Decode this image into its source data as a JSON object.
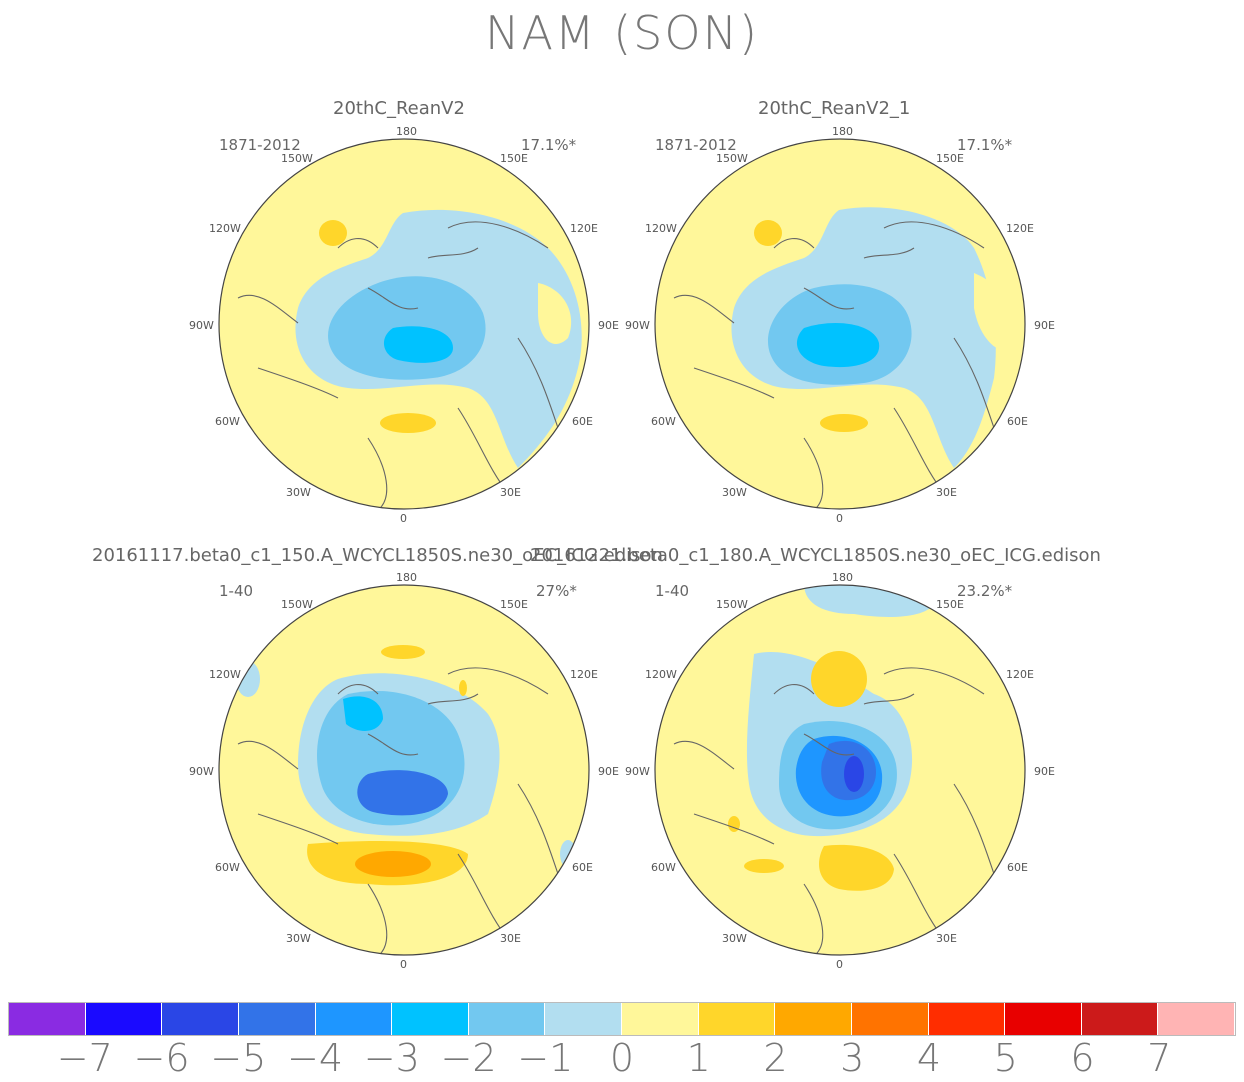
{
  "figure": {
    "title": "NAM (SON)"
  },
  "panels": [
    {
      "id": "p1",
      "title": "20thC_ReanV2",
      "period": "1871-2012",
      "variance": "17.1%*",
      "lon_labels": {
        "n180": "180",
        "w150": "150W",
        "e150": "150E",
        "w120": "120W",
        "e120": "120E",
        "w90": "90W",
        "e90": "90E",
        "w60": "60W",
        "e60": "60E",
        "w30": "30W",
        "e30": "30E",
        "z0": "0"
      }
    },
    {
      "id": "p2",
      "title": "20thC_ReanV2_1",
      "period": "1871-2012",
      "variance": "17.1%*",
      "lon_labels": {
        "n180": "180",
        "w150": "150W",
        "e150": "150E",
        "w120": "120W",
        "e120": "120E",
        "w90": "90W",
        "e90": "90E",
        "w60": "60W",
        "e60": "60E",
        "w30": "30W",
        "e30": "30E",
        "z0": "0"
      }
    },
    {
      "id": "p3",
      "title": "20161117.beta0_c1_150.A_WCYCL1850S.ne30_oEC_ICG.edison",
      "period": "1-40",
      "variance": "27%*",
      "lon_labels": {
        "n180": "180",
        "w150": "150W",
        "e150": "150E",
        "w120": "120W",
        "e120": "120E",
        "w90": "90W",
        "e90": "90E",
        "w60": "60W",
        "e60": "60E",
        "w30": "30W",
        "e30": "30E",
        "z0": "0"
      }
    },
    {
      "id": "p4",
      "title": "20161221.beta0_c1_180.A_WCYCL1850S.ne30_oEC_ICG.edison",
      "period": "1-40",
      "variance": "23.2%*",
      "lon_labels": {
        "n180": "180",
        "w150": "150W",
        "e150": "150E",
        "w120": "120W",
        "e120": "120E",
        "w90": "90W",
        "e90": "90E",
        "w60": "60W",
        "e60": "60E",
        "w30": "30W",
        "e30": "30E",
        "z0": "0"
      }
    }
  ],
  "colorbar": {
    "colors": [
      "#8a2be2",
      "#1a0aff",
      "#2a46e6",
      "#3273e8",
      "#1e96ff",
      "#00c2ff",
      "#72c8f0",
      "#b2def0",
      "#fff79a",
      "#ffd62a",
      "#ffa800",
      "#ff7300",
      "#ff2d00",
      "#e80000",
      "#cc1a1a",
      "#ffb4b4"
    ],
    "labels": [
      "−7",
      "−6",
      "−5",
      "−4",
      "−3",
      "−2",
      "−1",
      "0",
      "1",
      "2",
      "3",
      "4",
      "5",
      "6",
      "7"
    ]
  }
}
